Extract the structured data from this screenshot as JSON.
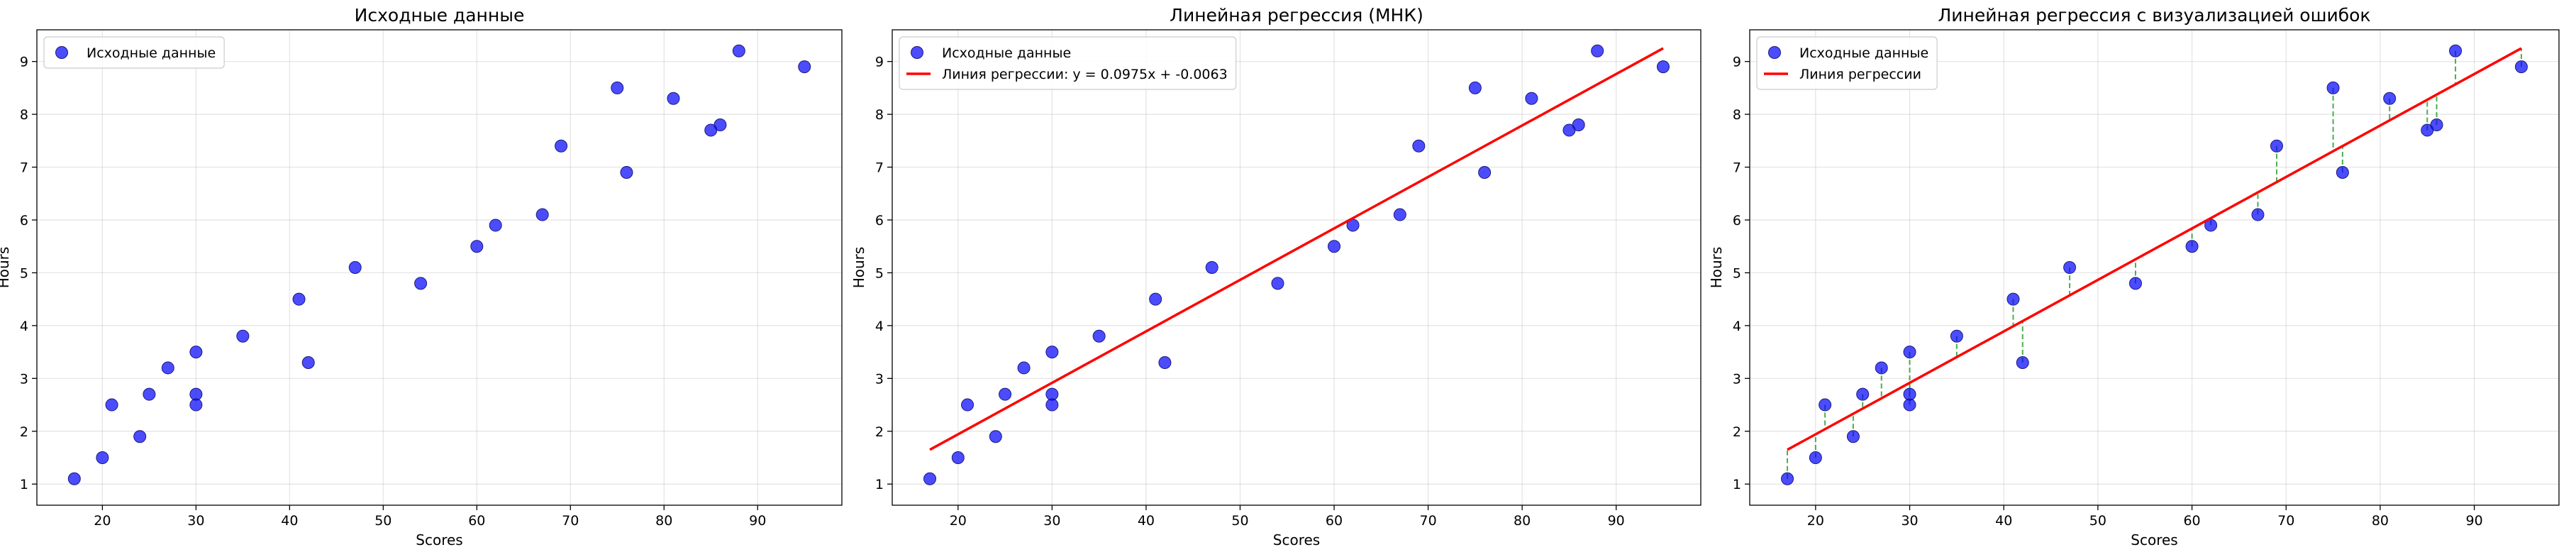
{
  "chart_data": [
    {
      "type": "scatter",
      "title": "Исходные данные",
      "xlabel": "Scores",
      "ylabel": "Hours",
      "xlim": [
        13,
        99
      ],
      "ylim": [
        0.6,
        9.6
      ],
      "xticks": [
        20,
        30,
        40,
        50,
        60,
        70,
        80,
        90
      ],
      "yticks": [
        1,
        2,
        3,
        4,
        5,
        6,
        7,
        8,
        9
      ],
      "grid": true,
      "legend_position": "top-left",
      "series": [
        {
          "name": "Исходные данные",
          "kind": "scatter",
          "color": "#0000ff",
          "x": [
            17,
            20,
            21,
            24,
            25,
            27,
            30,
            30,
            30,
            35,
            41,
            42,
            47,
            54,
            60,
            62,
            67,
            69,
            75,
            76,
            81,
            85,
            86,
            88,
            95
          ],
          "y": [
            1.1,
            1.5,
            2.5,
            1.9,
            2.7,
            3.2,
            2.7,
            2.5,
            3.5,
            3.8,
            4.5,
            3.3,
            5.1,
            4.8,
            5.5,
            5.9,
            6.1,
            7.4,
            8.5,
            6.9,
            8.3,
            7.7,
            7.8,
            9.2,
            8.9
          ]
        }
      ]
    },
    {
      "type": "scatter",
      "title": "Линейная регрессия (МНК)",
      "xlabel": "Scores",
      "ylabel": "Hours",
      "xlim": [
        13,
        99
      ],
      "ylim": [
        0.6,
        9.6
      ],
      "xticks": [
        20,
        30,
        40,
        50,
        60,
        70,
        80,
        90
      ],
      "yticks": [
        1,
        2,
        3,
        4,
        5,
        6,
        7,
        8,
        9
      ],
      "grid": true,
      "legend_position": "top-left",
      "series": [
        {
          "name": "Исходные данные",
          "kind": "scatter",
          "color": "#0000ff",
          "x": [
            17,
            20,
            21,
            24,
            25,
            27,
            30,
            30,
            30,
            35,
            41,
            42,
            47,
            54,
            60,
            62,
            67,
            69,
            75,
            76,
            81,
            85,
            86,
            88,
            95
          ],
          "y": [
            1.1,
            1.5,
            2.5,
            1.9,
            2.7,
            3.2,
            2.7,
            2.5,
            3.5,
            3.8,
            4.5,
            3.3,
            5.1,
            4.8,
            5.5,
            5.9,
            6.1,
            7.4,
            8.5,
            6.9,
            8.3,
            7.7,
            7.8,
            9.2,
            8.9
          ]
        },
        {
          "name": "Линия регрессии: y = 0.0975x + -0.0063",
          "kind": "line",
          "color": "#ff0000",
          "x": [
            17,
            95
          ],
          "y": [
            1.65,
            9.25
          ]
        }
      ]
    },
    {
      "type": "scatter",
      "title": "Линейная регрессия с визуализацией ошибок",
      "xlabel": "Scores",
      "ylabel": "Hours",
      "xlim": [
        13,
        99
      ],
      "ylim": [
        0.6,
        9.6
      ],
      "xticks": [
        20,
        30,
        40,
        50,
        60,
        70,
        80,
        90
      ],
      "yticks": [
        1,
        2,
        3,
        4,
        5,
        6,
        7,
        8,
        9
      ],
      "grid": true,
      "legend_position": "top-left",
      "residual_color": "#2ca02c",
      "series": [
        {
          "name": "Исходные данные",
          "kind": "scatter",
          "color": "#0000ff",
          "x": [
            17,
            20,
            21,
            24,
            25,
            27,
            30,
            30,
            30,
            35,
            41,
            42,
            47,
            54,
            60,
            62,
            67,
            69,
            75,
            76,
            81,
            85,
            86,
            88,
            95
          ],
          "y": [
            1.1,
            1.5,
            2.5,
            1.9,
            2.7,
            3.2,
            2.7,
            2.5,
            3.5,
            3.8,
            4.5,
            3.3,
            5.1,
            4.8,
            5.5,
            5.9,
            6.1,
            7.4,
            8.5,
            6.9,
            8.3,
            7.7,
            7.8,
            9.2,
            8.9
          ]
        },
        {
          "name": "Линия регрессии",
          "kind": "line",
          "color": "#ff0000",
          "x": [
            17,
            95
          ],
          "y": [
            1.65,
            9.25
          ]
        }
      ]
    }
  ]
}
